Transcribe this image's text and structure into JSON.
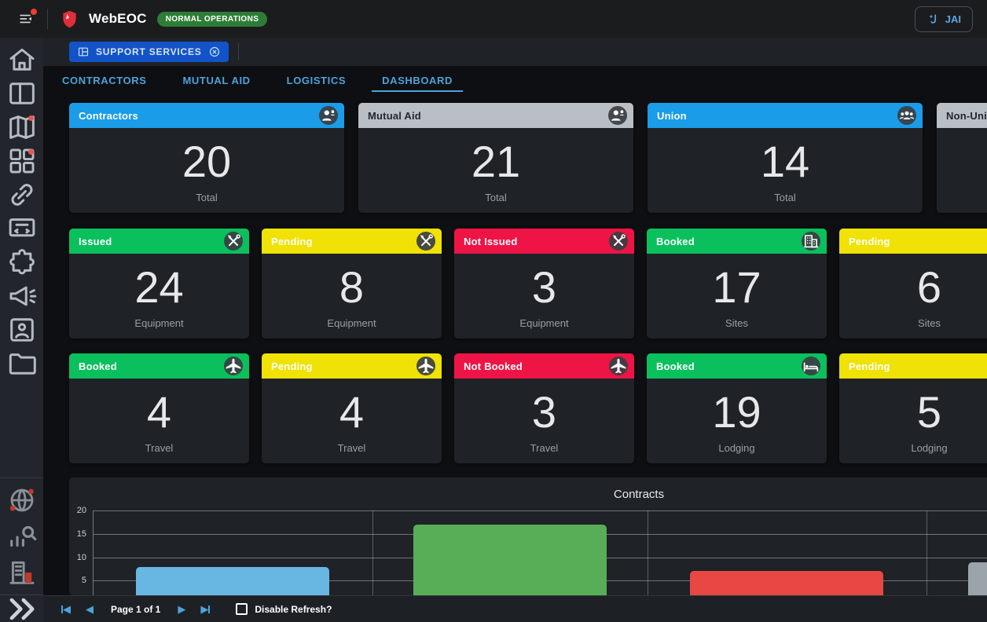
{
  "colors": {
    "accent": "#4da3dc",
    "link_blue": "#57a7e8",
    "green": "#0ac05d",
    "yellow": "#efe204",
    "red": "#ef1446",
    "blue": "#1a9ce8",
    "gray": "#b9bfc5"
  },
  "topbar": {
    "app_name": "WebEOC",
    "status_badge": "NORMAL OPERATIONS",
    "status_badge_bg": "#2e7d36",
    "jai_label": "JAI",
    "menu_icon": "menu",
    "logo_icon": "shield",
    "jai_icon": "jai-sparkle"
  },
  "board_chip": {
    "label": "SUPPORT SERVICES",
    "bg": "#1254c8",
    "icon": "board",
    "close_icon": "close-circle"
  },
  "tabs": {
    "items": [
      {
        "label": "CONTRACTORS",
        "active": false
      },
      {
        "label": "MUTUAL AID",
        "active": false
      },
      {
        "label": "LOGISTICS",
        "active": false
      },
      {
        "label": "DASHBOARD",
        "active": true
      }
    ]
  },
  "cards": {
    "row1": [
      {
        "title": "Contractors",
        "value": "20",
        "label": "Total",
        "header_bg": "#1a9ce8",
        "title_color": "#ffffff",
        "icon": "person-add"
      },
      {
        "title": "Mutual Aid",
        "value": "21",
        "label": "Total",
        "header_bg": "#b9bfc5",
        "title_color": "#23272c",
        "icon": "person-add"
      },
      {
        "title": "Union",
        "value": "14",
        "label": "Total",
        "header_bg": "#1a9ce8",
        "title_color": "#ffffff",
        "icon": "group"
      },
      {
        "title": "Non-Union",
        "value": "",
        "label": "",
        "header_bg": "#b9bfc5",
        "title_color": "#23272c",
        "icon": ""
      }
    ],
    "row2": [
      {
        "title": "Issued",
        "value": "24",
        "label": "Equipment",
        "header_bg": "#0ac05d",
        "title_color": "#ffffff",
        "icon": "tools"
      },
      {
        "title": "Pending",
        "value": "8",
        "label": "Equipment",
        "header_bg": "#efe204",
        "title_color": "#ffffff",
        "icon": "tools"
      },
      {
        "title": "Not Issued",
        "value": "3",
        "label": "Equipment",
        "header_bg": "#ef1446",
        "title_color": "#ffffff",
        "icon": "tools"
      },
      {
        "title": "Booked",
        "value": "17",
        "label": "Sites",
        "header_bg": "#0ac05d",
        "title_color": "#ffffff",
        "icon": "building"
      },
      {
        "title": "Pending",
        "value": "6",
        "label": "Sites",
        "header_bg": "#efe204",
        "title_color": "#ffffff",
        "icon": "building"
      }
    ],
    "row3": [
      {
        "title": "Booked",
        "value": "4",
        "label": "Travel",
        "header_bg": "#0ac05d",
        "title_color": "#ffffff",
        "icon": "plane"
      },
      {
        "title": "Pending",
        "value": "4",
        "label": "Travel",
        "header_bg": "#efe204",
        "title_color": "#ffffff",
        "icon": "plane"
      },
      {
        "title": "Not Booked",
        "value": "3",
        "label": "Travel",
        "header_bg": "#ef1446",
        "title_color": "#ffffff",
        "icon": "plane"
      },
      {
        "title": "Booked",
        "value": "19",
        "label": "Lodging",
        "header_bg": "#0ac05d",
        "title_color": "#ffffff",
        "icon": "bed"
      },
      {
        "title": "Pending",
        "value": "5",
        "label": "Lodging",
        "header_bg": "#efe204",
        "title_color": "#ffffff",
        "icon": "bed"
      }
    ]
  },
  "chart_data": {
    "type": "bar",
    "title": "Contracts",
    "y_ticks": [
      20,
      15,
      10,
      5
    ],
    "visible_y_range": [
      5,
      20
    ],
    "categories": [
      "",
      "",
      "",
      ""
    ],
    "values": [
      8,
      17,
      7,
      9
    ],
    "bar_colors": [
      "#68b7e3",
      "#57ae57",
      "#e94744",
      "#9ba4ab"
    ],
    "grid": true,
    "note": "x-axis category labels cut off at bottom of viewport; 4th bar clipped at right edge"
  },
  "pagination": {
    "page_text": "Page 1 of 1",
    "disable_refresh_label": "Disable Refresh?",
    "checkbox_checked": false
  },
  "sidebar": {
    "items": [
      {
        "icon": "home",
        "badge": false,
        "color": "#b5bbc2"
      },
      {
        "icon": "panel",
        "badge": false,
        "color": "#b5bbc2"
      },
      {
        "icon": "map",
        "badge": true,
        "color": "#b5bbc2"
      },
      {
        "icon": "widgets",
        "badge": true,
        "color": "#b5bbc2"
      },
      {
        "icon": "link",
        "badge": false,
        "color": "#b5bbc2"
      },
      {
        "icon": "screen",
        "badge": false,
        "color": "#b5bbc2"
      },
      {
        "icon": "puzzle",
        "badge": false,
        "color": "#b5bbc2"
      },
      {
        "icon": "megaphone",
        "badge": false,
        "color": "#b5bbc2"
      },
      {
        "icon": "badge-card",
        "badge": false,
        "color": "#b5bbc2"
      },
      {
        "icon": "folder",
        "badge": false,
        "color": "#b5bbc2"
      }
    ],
    "tools": [
      {
        "icon": "globe",
        "color": "#8a9097"
      },
      {
        "icon": "stats",
        "color": "#8a9097"
      },
      {
        "icon": "corp",
        "color": "#8a9097"
      }
    ],
    "collapse_icon": "chevrons"
  }
}
